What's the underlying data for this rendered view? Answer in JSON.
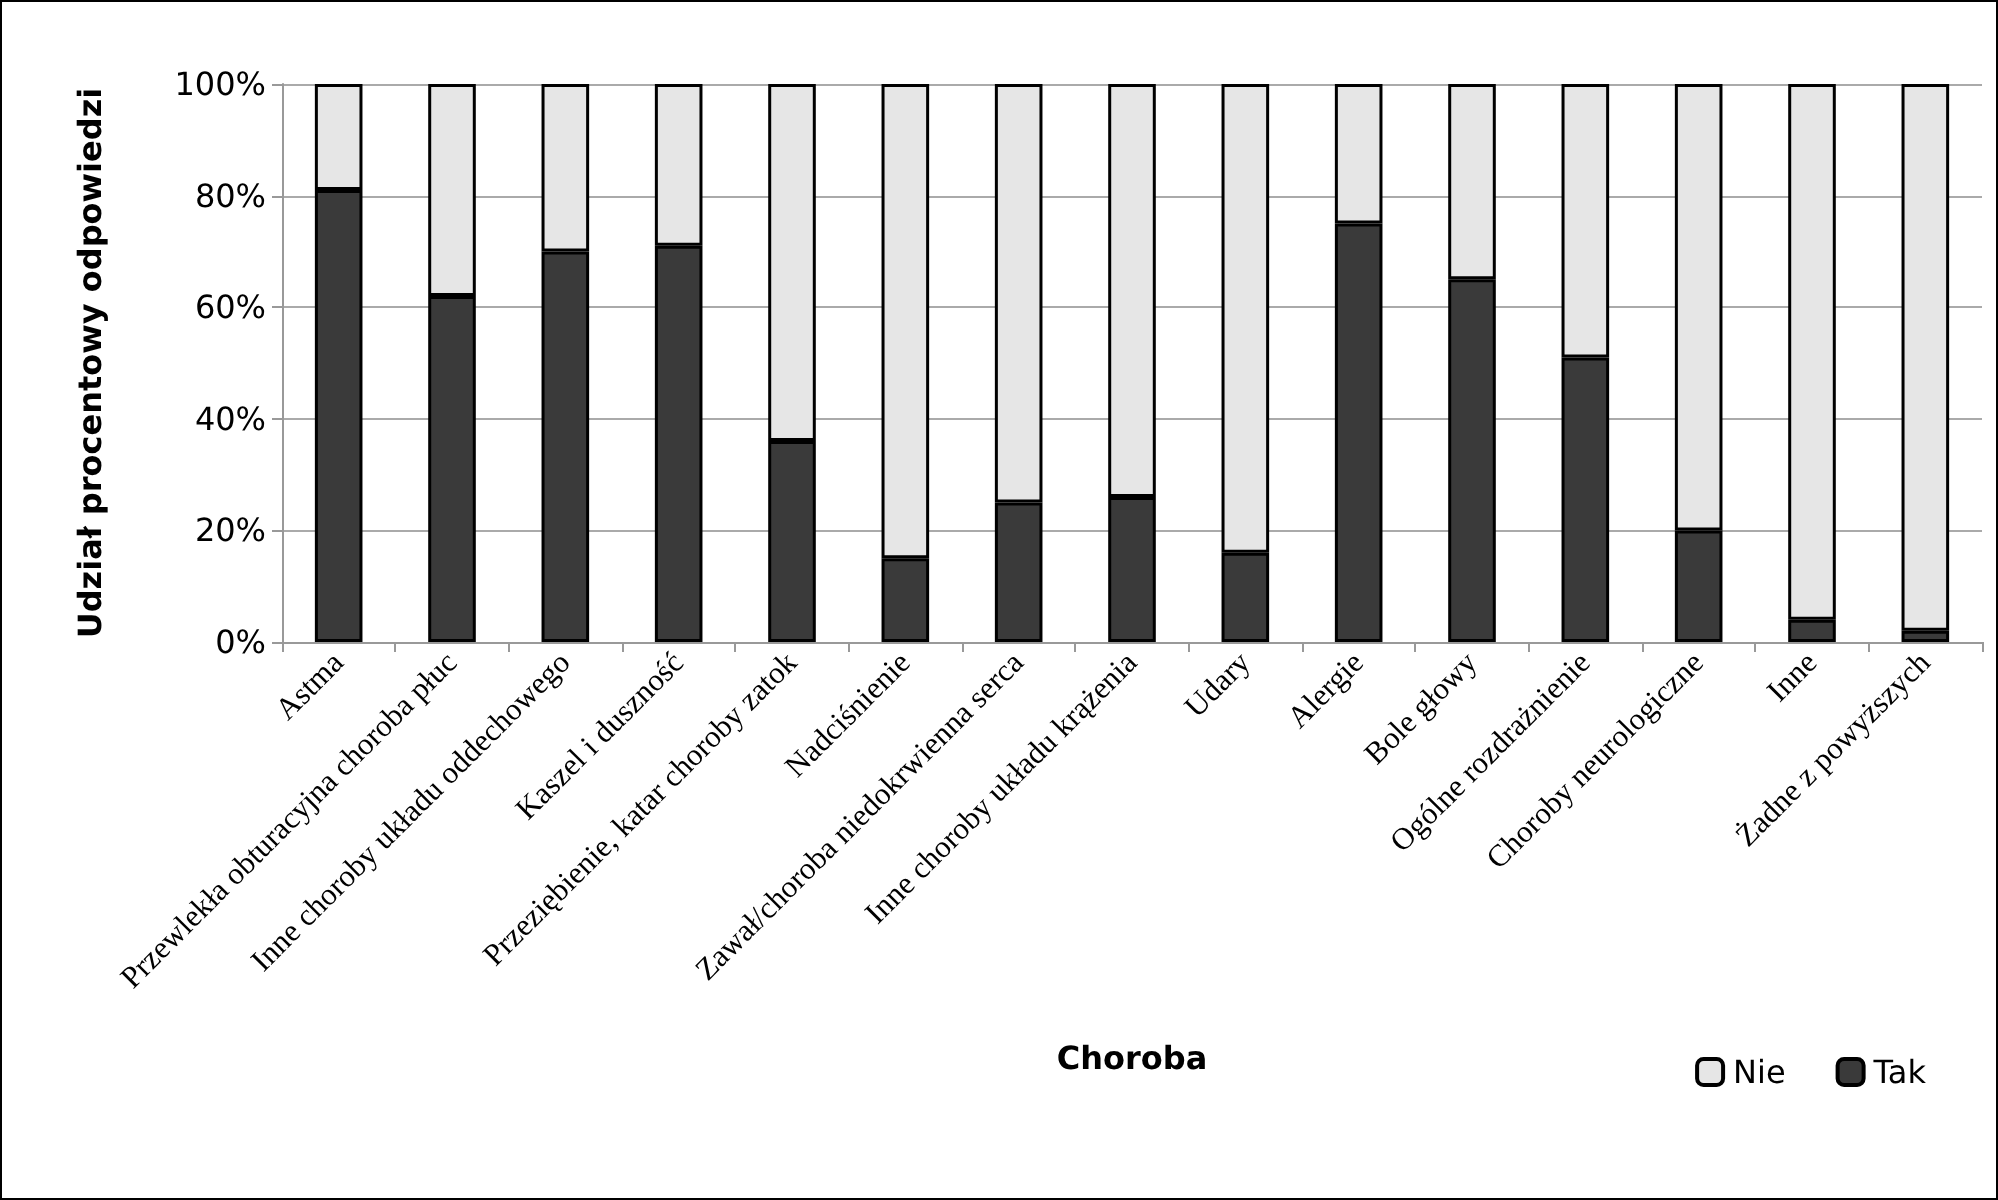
{
  "chart_data": {
    "type": "bar",
    "stacked": true,
    "xlabel": "Choroba",
    "ylabel": "Udział procentowy odpowiedzi",
    "categories": [
      "Astma",
      "Przewlekła obturacyjna choroba płuc",
      "Inne choroby układu oddechowego",
      "Kaszel i duszność",
      "Przeziębienie, katar choroby zatok",
      "Nadciśnienie",
      "Zawał/choroba niedokrwienna serca",
      "Inne choroby układu krążenia",
      "Udary",
      "Alergie",
      "Bole głowy",
      "Ogólne rozdrażnienie",
      "Choroby neurologiczne",
      "Inne",
      "Żadne z powyższych"
    ],
    "series": [
      {
        "name": "Tak",
        "color": "#3a3a3a",
        "values": [
          81,
          62,
          70,
          71,
          36,
          15,
          25,
          26,
          16,
          75,
          65,
          51,
          20,
          4,
          2
        ]
      },
      {
        "name": "Nie",
        "color": "#e6e6e6",
        "values": [
          19,
          38,
          30,
          29,
          64,
          85,
          75,
          74,
          84,
          25,
          35,
          49,
          80,
          96,
          98
        ]
      }
    ],
    "ylim": [
      0,
      100
    ],
    "yticks": [
      {
        "value": 0,
        "label": "0%"
      },
      {
        "value": 20,
        "label": "20%"
      },
      {
        "value": 40,
        "label": "40%"
      },
      {
        "value": 60,
        "label": "60%"
      },
      {
        "value": 80,
        "label": "80%"
      },
      {
        "value": 100,
        "label": "100%"
      }
    ],
    "grid": "y",
    "legend": "bottom right"
  }
}
